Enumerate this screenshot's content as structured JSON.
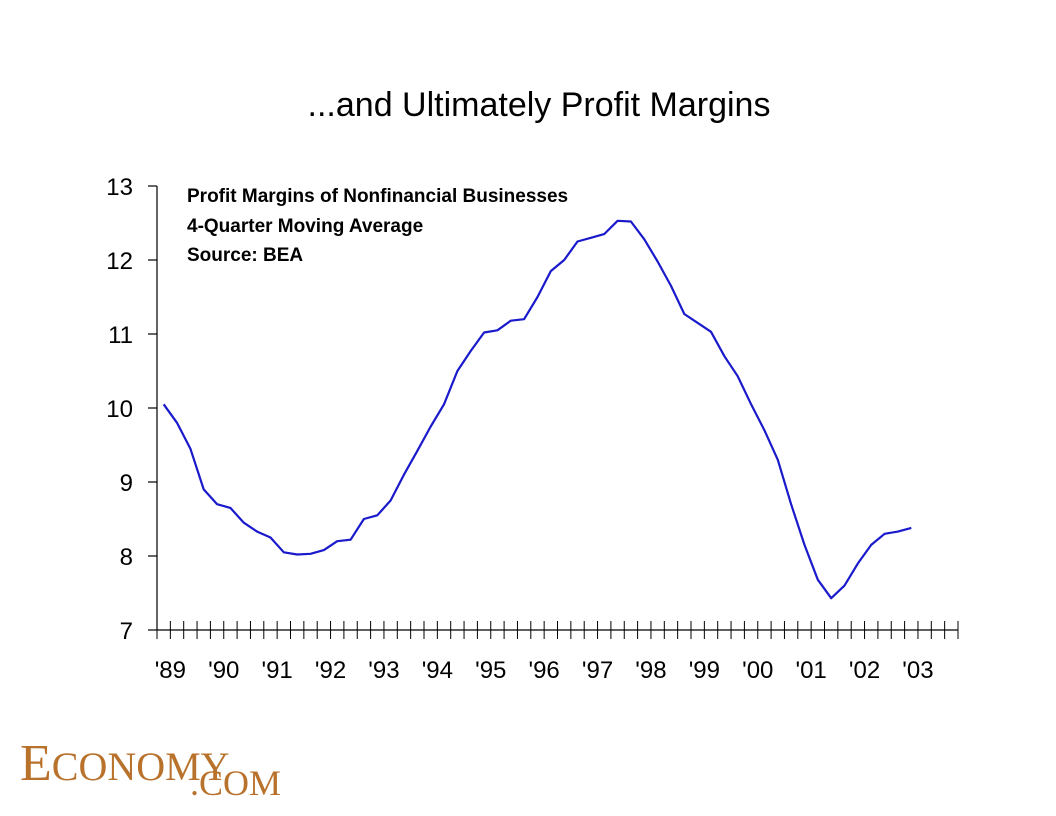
{
  "title": "...and Ultimately Profit Margins",
  "annotation": {
    "line1": "Profit Margins of Nonfinancial Businesses",
    "line2": "4-Quarter Moving Average",
    "line3": "Source: BEA"
  },
  "logo": {
    "first_letter": "E",
    "rest": "CONOMY",
    "suffix": ".COM"
  },
  "colors": {
    "line": "#1a1acc",
    "axis": "#000000",
    "logo": "#b8722c"
  },
  "chart_data": {
    "type": "line",
    "title": "...and Ultimately Profit Margins",
    "xlabel": "",
    "ylabel": "",
    "ylim": [
      7,
      13
    ],
    "yticks": [
      7,
      8,
      9,
      10,
      11,
      12,
      13
    ],
    "year_labels": [
      "'89",
      "'90",
      "'91",
      "'92",
      "'93",
      "'94",
      "'95",
      "'96",
      "'97",
      "'98",
      "'99",
      "'00",
      "'01",
      "'02",
      "'03"
    ],
    "grid": false,
    "legend": "none",
    "series": [
      {
        "x": [
          "1989Q1",
          "1989Q2",
          "1989Q3",
          "1989Q4",
          "1990Q1",
          "1990Q2",
          "1990Q3",
          "1990Q4",
          "1991Q1",
          "1991Q2",
          "1991Q3",
          "1991Q4",
          "1992Q1",
          "1992Q2",
          "1992Q3",
          "1992Q4",
          "1993Q1",
          "1993Q2",
          "1993Q3",
          "1993Q4",
          "1994Q1",
          "1994Q2",
          "1994Q3",
          "1994Q4",
          "1995Q1",
          "1995Q2",
          "1995Q3",
          "1995Q4",
          "1996Q1",
          "1996Q2",
          "1996Q3",
          "1996Q4",
          "1997Q1",
          "1997Q2",
          "1997Q3",
          "1997Q4",
          "1998Q1",
          "1998Q2",
          "1998Q3",
          "1998Q4",
          "1999Q1",
          "1999Q2",
          "1999Q3",
          "1999Q4",
          "2000Q1",
          "2000Q2",
          "2000Q3",
          "2000Q4",
          "2001Q1",
          "2001Q2",
          "2001Q3",
          "2001Q4",
          "2002Q1",
          "2002Q2",
          "2002Q3",
          "2002Q4",
          "2003Q1"
        ],
        "values": [
          10.05,
          9.8,
          9.45,
          8.9,
          8.7,
          8.65,
          8.45,
          8.33,
          8.25,
          8.05,
          8.02,
          8.03,
          8.08,
          8.2,
          8.22,
          8.5,
          8.55,
          8.75,
          9.1,
          9.42,
          9.75,
          10.05,
          10.5,
          10.77,
          11.02,
          11.05,
          11.18,
          11.2,
          11.5,
          11.85,
          12.0,
          12.25,
          12.3,
          12.35,
          12.53,
          12.52,
          12.28,
          11.98,
          11.65,
          11.27,
          11.15,
          11.03,
          10.7,
          10.43,
          10.05,
          9.7,
          9.3,
          8.7,
          8.15,
          7.68,
          7.43,
          7.6,
          7.9,
          8.15,
          8.3,
          8.33,
          8.38
        ]
      }
    ]
  }
}
